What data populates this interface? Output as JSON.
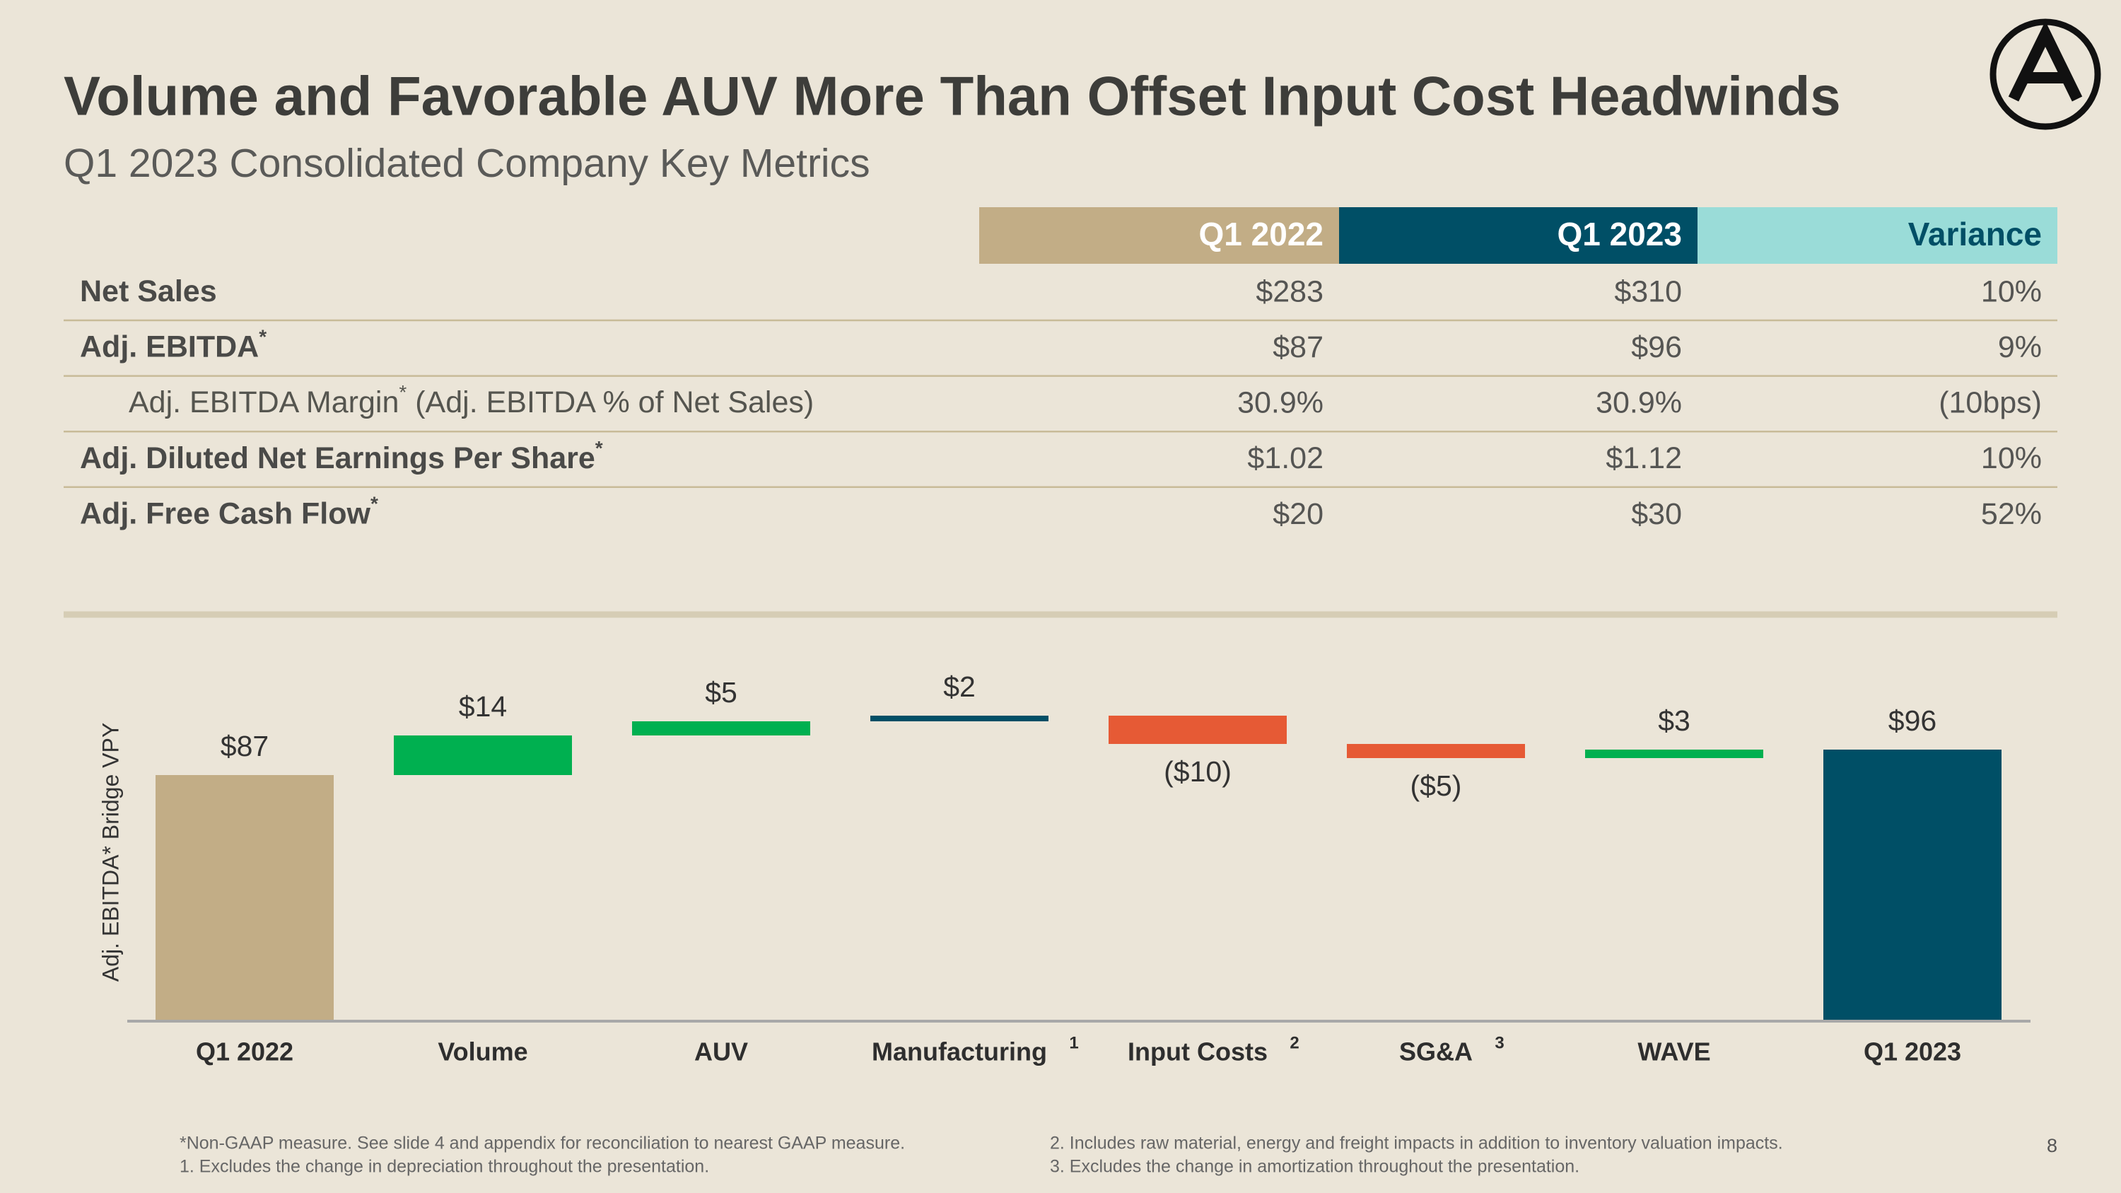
{
  "header": {
    "title": "Volume and Favorable AUV More Than Offset Input Cost Headwinds",
    "subtitle": "Q1 2023 Consolidated Company Key Metrics"
  },
  "table": {
    "columns": [
      {
        "label": "Q1 2022",
        "color": "#c2ad86",
        "text_color": "#ffffff"
      },
      {
        "label": "Q1 2023",
        "color": "#004f66",
        "text_color": "#ffffff"
      },
      {
        "label": "Variance",
        "color": "#9adcd8",
        "text_color": "#004f66"
      }
    ],
    "rows": [
      {
        "label": "Net Sales",
        "bold": true,
        "cells": [
          "$283",
          "$310",
          "10%"
        ]
      },
      {
        "label": "Adj. EBITDA",
        "note": "*",
        "bold": true,
        "cells": [
          "$87",
          "$96",
          "9%"
        ]
      },
      {
        "label": "Adj. EBITDA Margin",
        "note": "*",
        "suffix": " (Adj. EBITDA % of Net Sales)",
        "bold": false,
        "indent": true,
        "cells": [
          "30.9%",
          "30.9%",
          "(10bps)"
        ]
      },
      {
        "label": "Adj. Diluted Net Earnings Per Share",
        "note": "*",
        "bold": true,
        "cells": [
          "$1.02",
          "$1.12",
          "10%"
        ]
      },
      {
        "label": "Adj. Free Cash Flow",
        "note": "*",
        "bold": true,
        "cells": [
          "$20",
          "$30",
          "52%"
        ]
      }
    ]
  },
  "chart_data": {
    "type": "waterfall",
    "y_label": "Adj. EBITDA* Bridge VPY",
    "categories": [
      "Q1 2022",
      "Volume",
      "AUV",
      "Manufacturing",
      "Input Costs",
      "SG&A",
      "WAVE",
      "Q1 2023"
    ],
    "category_notes": [
      null,
      null,
      null,
      "1",
      "2",
      "3",
      null,
      null
    ],
    "values": [
      87,
      14,
      5,
      2,
      -10,
      -5,
      3,
      96
    ],
    "value_labels": [
      "$87",
      "$14",
      "$5",
      "$2",
      "($10)",
      "($5)",
      "$3",
      "$96"
    ],
    "colors": [
      "#c2ad86",
      "#00b050",
      "#00b050",
      "#004f66",
      "#e65a35",
      "#e65a35",
      "#00b050",
      "#004f66"
    ],
    "ylim": [
      0,
      120
    ]
  },
  "footnotes": {
    "left": [
      "*Non-GAAP measure. See slide 4 and appendix for reconciliation to nearest GAAP measure.",
      "1. Excludes the change in depreciation throughout the presentation."
    ],
    "right": [
      "2. Includes raw material, energy and freight impacts in addition to inventory valuation impacts.",
      "3. Excludes the change in amortization throughout the presentation."
    ]
  },
  "page_number": "8"
}
